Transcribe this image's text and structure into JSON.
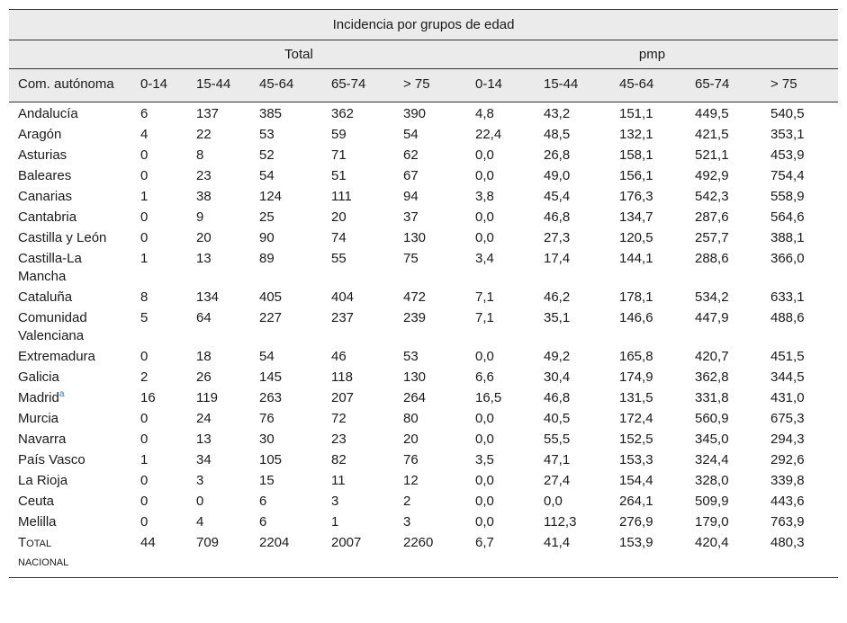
{
  "table": {
    "title": "Incidencia por grupos de edad",
    "groups": [
      "Total",
      "pmp"
    ],
    "columns": [
      "Com. autónoma",
      "0-14",
      "15-44",
      "45-64",
      "65-74",
      "> 75",
      "0-14",
      "15-44",
      "45-64",
      "65-74",
      "> 75"
    ],
    "rows": [
      {
        "region": "Andalucía",
        "values": [
          "6",
          "137",
          "385",
          "362",
          "390",
          "4,8",
          "43,2",
          "151,1",
          "449,5",
          "540,5"
        ]
      },
      {
        "region": "Aragón",
        "values": [
          "4",
          "22",
          "53",
          "59",
          "54",
          "22,4",
          "48,5",
          "132,1",
          "421,5",
          "353,1"
        ]
      },
      {
        "region": "Asturias",
        "values": [
          "0",
          "8",
          "52",
          "71",
          "62",
          "0,0",
          "26,8",
          "158,1",
          "521,1",
          "453,9"
        ]
      },
      {
        "region": "Baleares",
        "values": [
          "0",
          "23",
          "54",
          "51",
          "67",
          "0,0",
          "49,0",
          "156,1",
          "492,9",
          "754,4"
        ]
      },
      {
        "region": "Canarias",
        "values": [
          "1",
          "38",
          "124",
          "111",
          "94",
          "3,8",
          "45,4",
          "176,3",
          "542,3",
          "558,9"
        ]
      },
      {
        "region": "Cantabria",
        "values": [
          "0",
          "9",
          "25",
          "20",
          "37",
          "0,0",
          "46,8",
          "134,7",
          "287,6",
          "564,6"
        ]
      },
      {
        "region": "Castilla y León",
        "values": [
          "0",
          "20",
          "90",
          "74",
          "130",
          "0,0",
          "27,3",
          "120,5",
          "257,7",
          "388,1"
        ]
      },
      {
        "region": "Castilla-La Mancha",
        "values": [
          "1",
          "13",
          "89",
          "55",
          "75",
          "3,4",
          "17,4",
          "144,1",
          "288,6",
          "366,0"
        ]
      },
      {
        "region": "Cataluña",
        "values": [
          "8",
          "134",
          "405",
          "404",
          "472",
          "7,1",
          "46,2",
          "178,1",
          "534,2",
          "633,1"
        ]
      },
      {
        "region": "Comunidad Valenciana",
        "values": [
          "5",
          "64",
          "227",
          "237",
          "239",
          "7,1",
          "35,1",
          "146,6",
          "447,9",
          "488,6"
        ]
      },
      {
        "region": "Extremadura",
        "values": [
          "0",
          "18",
          "54",
          "46",
          "53",
          "0,0",
          "49,2",
          "165,8",
          "420,7",
          "451,5"
        ]
      },
      {
        "region": "Galicia",
        "values": [
          "2",
          "26",
          "145",
          "118",
          "130",
          "6,6",
          "30,4",
          "174,9",
          "362,8",
          "344,5"
        ]
      },
      {
        "region": "Madrid",
        "footnote": "a",
        "values": [
          "16",
          "119",
          "263",
          "207",
          "264",
          "16,5",
          "46,8",
          "131,5",
          "331,8",
          "431,0"
        ]
      },
      {
        "region": "Murcia",
        "values": [
          "0",
          "24",
          "76",
          "72",
          "80",
          "0,0",
          "40,5",
          "172,4",
          "560,9",
          "675,3"
        ]
      },
      {
        "region": "Navarra",
        "values": [
          "0",
          "13",
          "30",
          "23",
          "20",
          "0,0",
          "55,5",
          "152,5",
          "345,0",
          "294,3"
        ]
      },
      {
        "region": "País Vasco",
        "values": [
          "1",
          "34",
          "105",
          "82",
          "76",
          "3,5",
          "47,1",
          "153,3",
          "324,4",
          "292,6"
        ]
      },
      {
        "region": "La Rioja",
        "values": [
          "0",
          "3",
          "15",
          "11",
          "12",
          "0,0",
          "27,4",
          "154,4",
          "328,0",
          "339,8"
        ]
      },
      {
        "region": "Ceuta",
        "values": [
          "0",
          "0",
          "6",
          "3",
          "2",
          "0,0",
          "0,0",
          "264,1",
          "509,9",
          "443,6"
        ]
      },
      {
        "region": "Melilla",
        "values": [
          "0",
          "4",
          "6",
          "1",
          "3",
          "0,0",
          "112,3",
          "276,9",
          "179,0",
          "763,9"
        ]
      }
    ],
    "total": {
      "label_first": "T",
      "label_rest": "OTAL",
      "label_second": "NACIONAL",
      "values": [
        "44",
        "709",
        "2204",
        "2007",
        "2260",
        "6,7",
        "41,4",
        "153,9",
        "420,4",
        "480,3"
      ]
    }
  }
}
